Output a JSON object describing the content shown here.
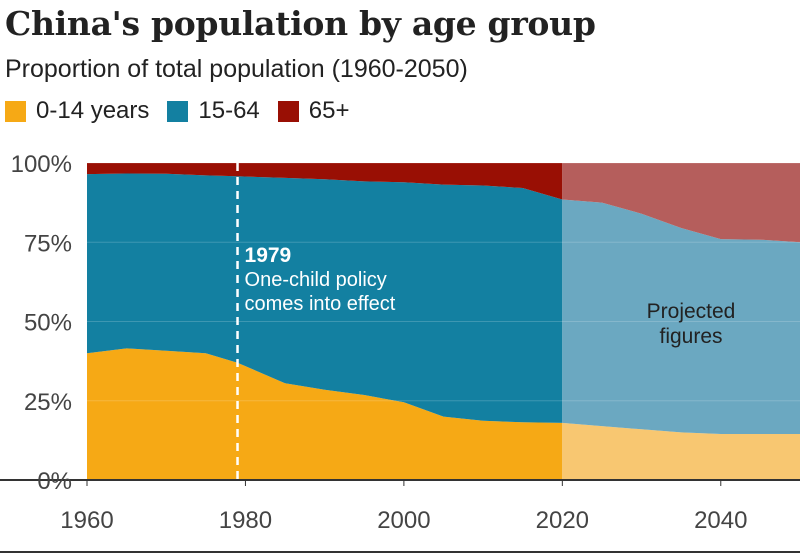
{
  "header": {
    "title": "China's population by age group",
    "subtitle": "Proportion of total population (1960-2050)"
  },
  "colors": {
    "0-14": "#f6a915",
    "15-64": "#1380a1",
    "65+": "#990f04",
    "projected_0-14": "#f8c771",
    "projected_15-64": "#6ba8c1",
    "projected_65+": "#b55e5c"
  },
  "chart_data": {
    "type": "area",
    "stacked": true,
    "title": "China's population by age group",
    "subtitle": "Proportion of total population (1960-2050)",
    "xlim": [
      1960,
      2050
    ],
    "ylim": [
      0,
      100
    ],
    "x_ticks": [
      1960,
      1980,
      2000,
      2020,
      2040
    ],
    "x_tick_labels": [
      "1960",
      "1980",
      "2000",
      "2020",
      "2040"
    ],
    "y_ticks": [
      0,
      25,
      50,
      75,
      100
    ],
    "y_tick_labels": [
      "0%",
      "25%",
      "50%",
      "75%",
      "100%"
    ],
    "grid": true,
    "legend_position": "top-left",
    "x": [
      1960,
      1965,
      1970,
      1975,
      1979,
      1985,
      1990,
      1995,
      2000,
      2005,
      2010,
      2015,
      2020,
      2025,
      2030,
      2035,
      2040,
      2045,
      2050
    ],
    "series": [
      {
        "name": "0-14 years",
        "key": "0-14",
        "values": [
          40.0,
          41.5,
          40.8,
          40.0,
          37.0,
          30.5,
          28.5,
          26.8,
          24.5,
          20.0,
          18.7,
          18.2,
          18.0,
          17.0,
          16.0,
          15.0,
          14.5,
          14.5,
          14.5
        ]
      },
      {
        "name": "15-64",
        "key": "15-64",
        "values": [
          56.5,
          55.2,
          55.8,
          56.1,
          58.8,
          64.8,
          66.4,
          67.4,
          69.4,
          73.2,
          74.2,
          73.9,
          70.5,
          70.5,
          68.0,
          64.5,
          61.5,
          61.3,
          60.5
        ]
      },
      {
        "name": "65+",
        "key": "65+",
        "values": [
          3.5,
          3.3,
          3.4,
          3.9,
          4.2,
          4.7,
          5.1,
          5.8,
          6.1,
          6.8,
          7.1,
          7.9,
          11.5,
          12.5,
          16.0,
          20.5,
          24.0,
          24.2,
          25.0
        ]
      }
    ],
    "projection_start": 2020,
    "annotations": [
      {
        "x": 1979,
        "label": "1979",
        "text": [
          "One-child policy",
          "comes into effect"
        ]
      },
      {
        "x": 2035,
        "y": 52,
        "text": [
          "Projected",
          "figures"
        ]
      }
    ]
  }
}
